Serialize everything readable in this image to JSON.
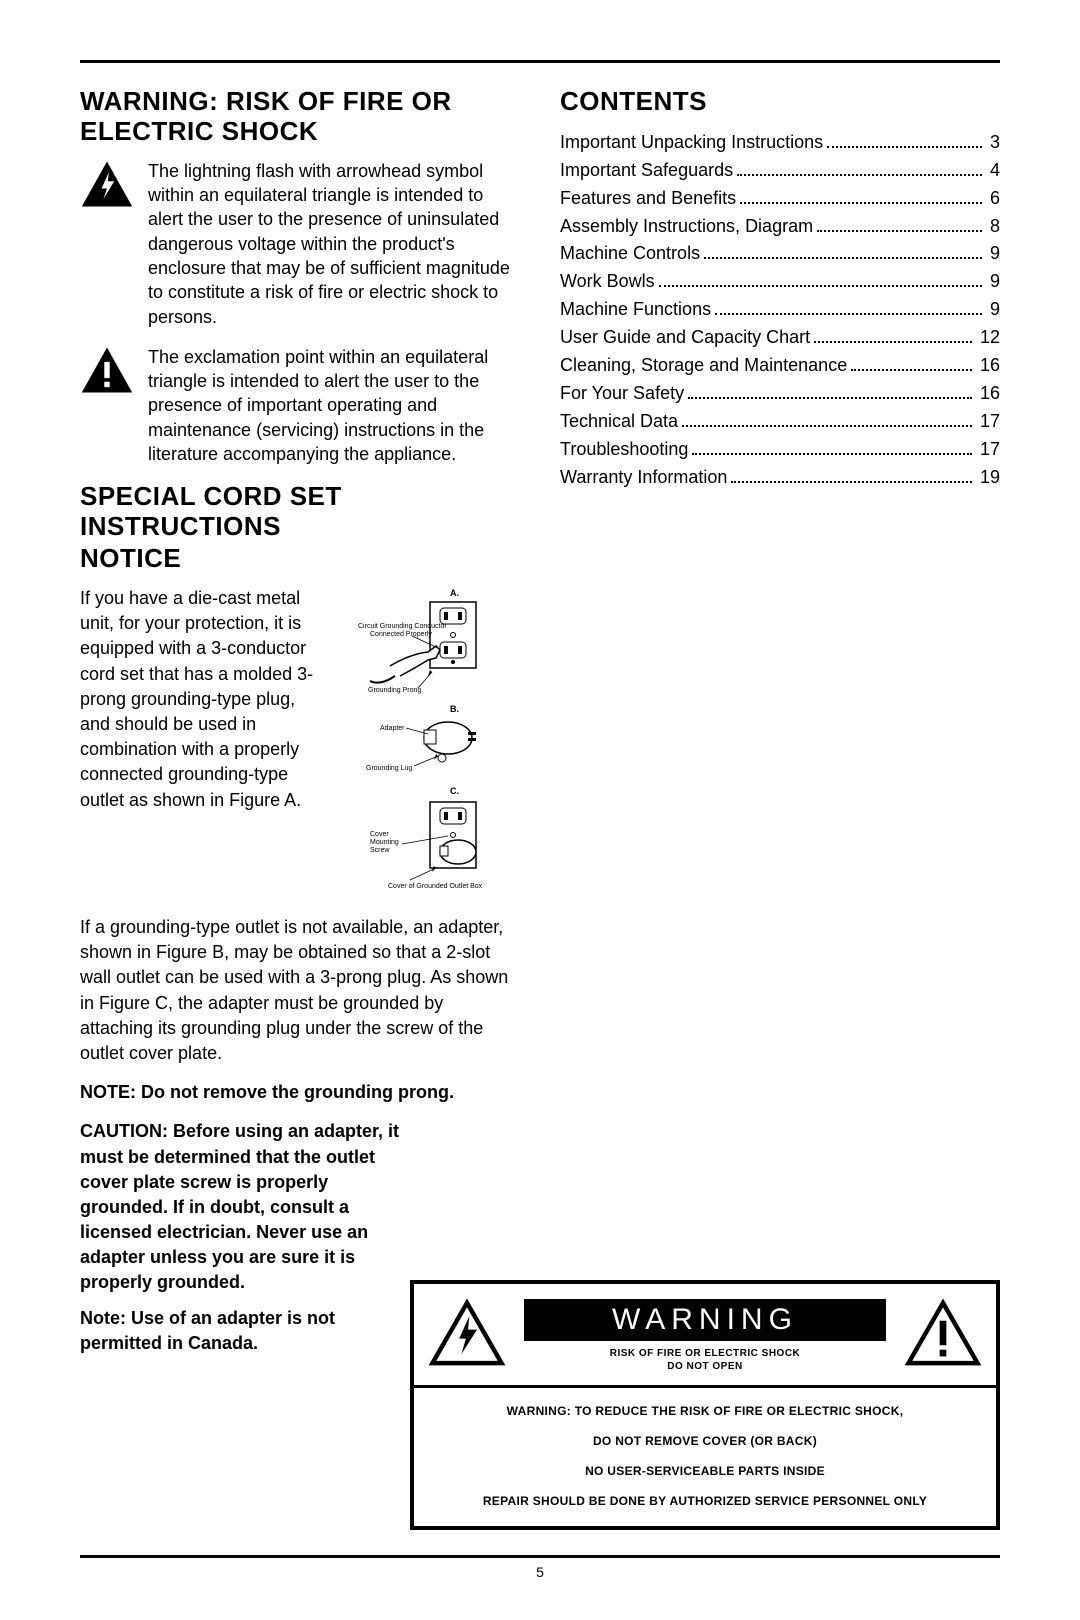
{
  "warning_heading": "WARNING: RISK OF FIRE OR ELECTRIC SHOCK",
  "lightning_text": "The lightning flash with arrowhead symbol within an equilateral triangle is intended to alert the user to the presence of uninsulated dangerous voltage within the product's enclosure that may be of sufficient magnitude to constitute a risk of fire or electric shock to persons.",
  "exclaim_text": "The exclamation point within an equilateral triangle is intended to alert the user to the presence of important operating and maintenance (servicing) instructions in the literature accompanying the appliance.",
  "cord_heading": "SPECIAL CORD SET INSTRUCTIONS",
  "notice_heading": "NOTICE",
  "notice_para": "If you have a die-cast metal unit, for your protection, it is equipped with a 3-conductor cord set that has a molded 3-prong grounding-type plug, and should be used in combination with a properly connected grounding-type outlet as shown in Figure A.",
  "notice_para2": "If a grounding-type outlet is not available, an adapter, shown in Figure B, may be obtained so that a 2-slot wall outlet can be used with a 3-prong plug. As shown in Figure C, the adapter must be grounded by attaching its grounding plug under the screw of the outlet cover plate.",
  "note_bold": "NOTE: Do not remove the grounding prong.",
  "caution_bold": "CAUTION: Before using an adapter, it must be determined that the outlet cover plate screw is properly grounded. If in doubt, consult a licensed electrician. Never use an adapter unless you are sure it is properly grounded.",
  "canada_note": "Note: Use of an adapter is not permitted in Canada.",
  "contents_heading": "CONTENTS",
  "toc": [
    {
      "label": "Important Unpacking Instructions",
      "page": "3"
    },
    {
      "label": "Important Safeguards",
      "page": "4"
    },
    {
      "label": "Features and Benefits",
      "page": "6"
    },
    {
      "label": "Assembly Instructions, Diagram",
      "page": "8"
    },
    {
      "label": "Machine Controls",
      "page": "9"
    },
    {
      "label": "Work Bowls",
      "page": "9"
    },
    {
      "label": "Machine Functions",
      "page": "9"
    },
    {
      "label": "User Guide and Capacity Chart",
      "page": "12"
    },
    {
      "label": "Cleaning, Storage and Maintenance",
      "page": "16"
    },
    {
      "label": "For Your Safety",
      "page": "16"
    },
    {
      "label": "Technical Data",
      "page": "17"
    },
    {
      "label": "Troubleshooting",
      "page": "17"
    },
    {
      "label": "Warranty Information",
      "page": "19"
    }
  ],
  "diagram": {
    "A": "A.",
    "B": "B.",
    "C": "C.",
    "circuit": "Circuit Grounding Conductor",
    "connected": "Connected Properly",
    "grounding_prong": "Grounding Prong",
    "adapter": "Adapter",
    "grounding_lug": "Grounding Lug",
    "cover_screw": "Cover\nMounting\nScrew",
    "cover_box": "Cover of Grounded Outlet Box"
  },
  "wbox": {
    "banner": "WARNING",
    "sub1": "RISK OF FIRE OR ELECTRIC SHOCK",
    "sub2": "DO NOT OPEN",
    "l1": "WARNING: TO REDUCE THE RISK OF FIRE OR ELECTRIC SHOCK,",
    "l2": "DO NOT REMOVE COVER (OR BACK)",
    "l3": "NO USER-SERVICEABLE PARTS INSIDE",
    "l4": "REPAIR SHOULD BE DONE BY AUTHORIZED SERVICE PERSONNEL ONLY"
  },
  "page_number": "5"
}
